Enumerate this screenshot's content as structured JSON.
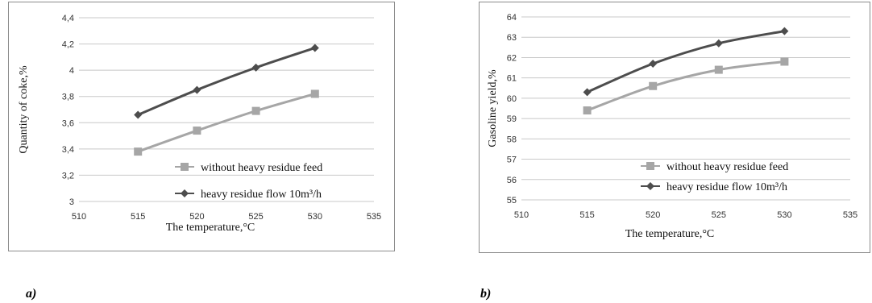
{
  "panels": [
    {
      "label": "a)"
    },
    {
      "label": "b)"
    }
  ],
  "chart_data": [
    {
      "type": "line",
      "title": "",
      "xlabel": "The temperature,°C",
      "ylabel": "Quantity of coke,%",
      "xlim": [
        510,
        535
      ],
      "ylim": [
        3,
        4.4
      ],
      "x_ticks": [
        510,
        515,
        520,
        525,
        530,
        535
      ],
      "y_ticks": [
        3,
        3.2,
        3.4,
        3.6,
        3.8,
        4,
        4.2,
        4.4
      ],
      "x_tick_labels": [
        "510",
        "515",
        "520",
        "525",
        "530",
        "535"
      ],
      "y_tick_labels": [
        "3",
        "3,2",
        "3,4",
        "3,6",
        "3,8",
        "4",
        "4,2",
        "4,4"
      ],
      "grid": "horizontal",
      "legend_position": "bottom-right",
      "x": [
        515,
        520,
        525,
        530
      ],
      "series": [
        {
          "name": "without heavy residue feed",
          "values": [
            3.38,
            3.54,
            3.69,
            3.82
          ],
          "color": "#a6a6a6",
          "marker": "square"
        },
        {
          "name": "heavy residue flow 10m³/h",
          "values": [
            3.66,
            3.85,
            4.02,
            4.17
          ],
          "color": "#4d4d4d",
          "marker": "diamond"
        }
      ]
    },
    {
      "type": "line",
      "title": "",
      "xlabel": "The temperature,°C",
      "ylabel": "Gasoline yield,%",
      "xlim": [
        510,
        535
      ],
      "ylim": [
        55,
        64
      ],
      "x_ticks": [
        510,
        515,
        520,
        525,
        530,
        535
      ],
      "y_ticks": [
        55,
        56,
        57,
        58,
        59,
        60,
        61,
        62,
        63,
        64
      ],
      "x_tick_labels": [
        "510",
        "515",
        "520",
        "525",
        "530",
        "535"
      ],
      "y_tick_labels": [
        "55",
        "56",
        "57",
        "58",
        "59",
        "60",
        "61",
        "62",
        "63",
        "64"
      ],
      "grid": "horizontal",
      "legend_position": "bottom-right",
      "x": [
        515,
        520,
        525,
        530
      ],
      "series": [
        {
          "name": "without heavy residue feed",
          "values": [
            59.4,
            60.6,
            61.4,
            61.8
          ],
          "color": "#a6a6a6",
          "marker": "square"
        },
        {
          "name": "heavy residue flow 10m³/h",
          "values": [
            60.3,
            61.7,
            62.7,
            63.3
          ],
          "color": "#4d4d4d",
          "marker": "diamond"
        }
      ]
    }
  ]
}
